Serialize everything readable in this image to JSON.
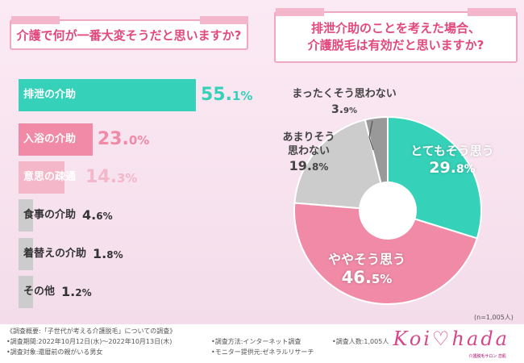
{
  "chart_data": [
    {
      "type": "bar",
      "title": "介護で何が一番大変そうだと思いますか?",
      "categories": [
        "排泄の介助",
        "入浴の介助",
        "意思の疎通",
        "食事の介助",
        "着替えの介助",
        "その他"
      ],
      "values": [
        55.1,
        23.0,
        14.3,
        4.6,
        1.8,
        1.2
      ],
      "value_labels": [
        {
          "int": "55.",
          "dec": "1%"
        },
        {
          "int": "23.",
          "dec": "0%"
        },
        {
          "int": "14.",
          "dec": "3%"
        },
        {
          "int": "4.",
          "dec": "6%"
        },
        {
          "int": "1.",
          "dec": "8%"
        },
        {
          "int": "1.",
          "dec": "2%"
        }
      ],
      "colors": [
        "#35d1b8",
        "#f08aa6",
        "#f4b6c9",
        "#cccccc",
        "#cccccc",
        "#cccccc"
      ],
      "label_colors": [
        "#ffffff",
        "#ffffff",
        "#ffffff",
        "#333333",
        "#333333",
        "#333333"
      ],
      "value_colors": [
        "#35d1b8",
        "#f08aa6",
        "#f4b6c9",
        "#333333",
        "#333333",
        "#333333"
      ]
    },
    {
      "type": "pie",
      "title_lines": [
        "排泄介助のことを考えた場合、",
        "介護脱毛は有効だと思いますか?"
      ],
      "categories": [
        "とてもそう思う",
        "ややそう思う",
        "あまりそう思わない",
        "まったくそう思わない"
      ],
      "values": [
        29.8,
        46.5,
        19.8,
        3.9
      ],
      "colors": [
        "#35d1b8",
        "#f08aa6",
        "#cccccc",
        "#999999"
      ],
      "slice_labels": [
        {
          "lines": [
            "とてもそう思う"
          ],
          "int": "29.",
          "dec": "8%"
        },
        {
          "lines": [
            "ややそう思う"
          ],
          "int": "46.",
          "dec": "5%"
        },
        {
          "lines": [
            "あまりそう",
            "思わない"
          ],
          "int": "19.",
          "dec": "8%"
        },
        {
          "lines": [
            "まったくそう思わない"
          ],
          "int": "3.",
          "dec": "9%"
        }
      ],
      "sample_note": "(n=1,005人)"
    }
  ],
  "footer": {
    "outline": "《調査概要:「子世代が考える介護脱毛」についての調査》",
    "period": "•調査期間:2022年10月12日(水)〜2022年10月13日(木)",
    "target": "•調査対象:還暦前の親がいる男女",
    "method": "•調査方法:インターネット調査",
    "provider": "•モニター提供元:ゼネラルリサーチ",
    "count": "•調査人数:1,005人"
  },
  "logo": {
    "text": "Koi♡hada",
    "sub": "介護脱毛サロン 恋肌"
  }
}
